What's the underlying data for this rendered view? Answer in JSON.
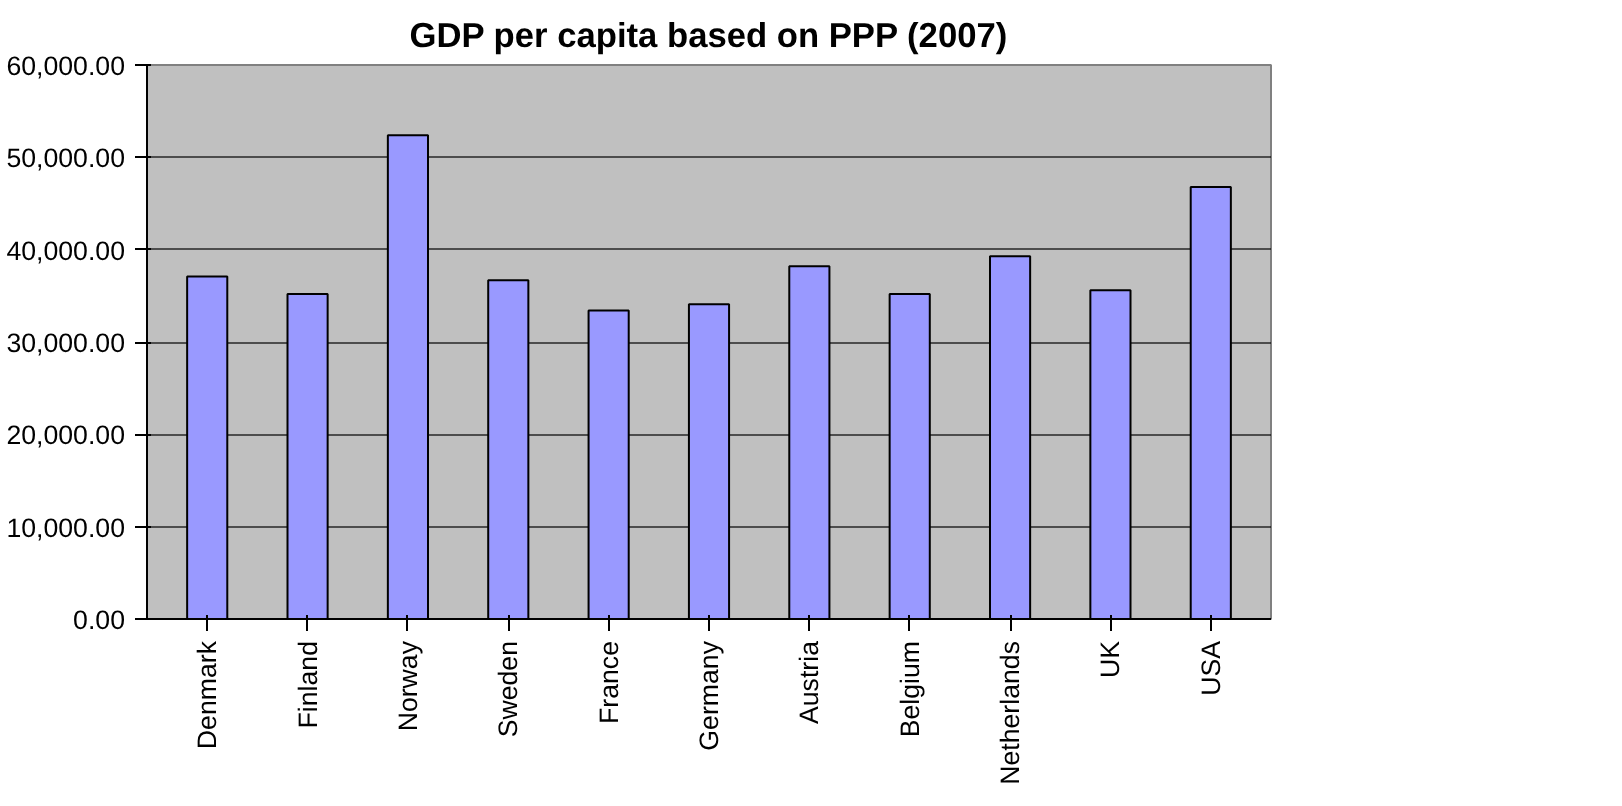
{
  "chart_data": {
    "type": "bar",
    "title": "GDP per capita based on PPP (2007)",
    "categories": [
      "Denmark",
      "Finland",
      "Norway",
      "Sweden",
      "France",
      "Germany",
      "Austria",
      "Belgium",
      "Netherlands",
      "UK",
      "USA"
    ],
    "values": [
      37100,
      35200,
      52400,
      36700,
      33400,
      34100,
      38200,
      35200,
      39300,
      35600,
      46800
    ],
    "color": "#9999ff",
    "ylim": [
      0,
      60000
    ],
    "yticks": [
      {
        "value": 0,
        "label": "0.00"
      },
      {
        "value": 10000,
        "label": "10,000.00"
      },
      {
        "value": 20000,
        "label": "20,000.00"
      },
      {
        "value": 30000,
        "label": "30,000.00"
      },
      {
        "value": 40000,
        "label": "40,000.00"
      },
      {
        "value": 50000,
        "label": "50,000.00"
      },
      {
        "value": 60000,
        "label": "60,000.00"
      }
    ],
    "grid": "y"
  }
}
